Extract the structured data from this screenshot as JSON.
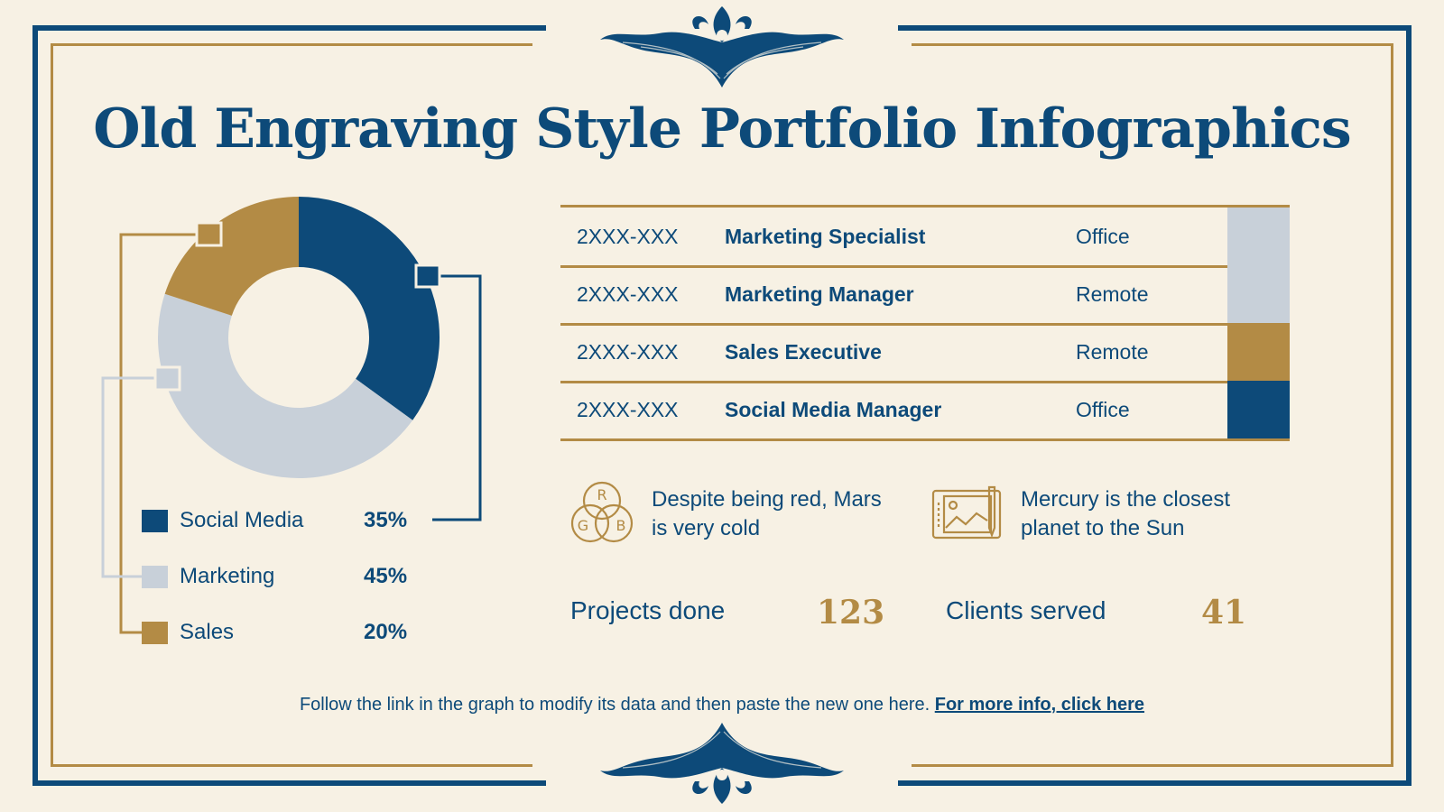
{
  "title": "Old Engraving Style Portfolio Infographics",
  "colors": {
    "navy": "#0d4a79",
    "gold": "#b38b45",
    "light": "#c8d0d9",
    "background": "#f7f1e4"
  },
  "chart_data": {
    "type": "pie",
    "donut": true,
    "categories": [
      "Social Media",
      "Marketing",
      "Sales"
    ],
    "values": [
      35,
      45,
      20
    ],
    "labels": [
      "35%",
      "45%",
      "20%"
    ],
    "colors": [
      "#0d4a79",
      "#c8d0d9",
      "#b38b45"
    ]
  },
  "table": {
    "rows": [
      {
        "date": "2XXX-XXX",
        "role": "Marketing Specialist",
        "location": "Office",
        "color": "#c8d0d9"
      },
      {
        "date": "2XXX-XXX",
        "role": "Marketing Manager",
        "location": "Remote",
        "color": "#c8d0d9"
      },
      {
        "date": "2XXX-XXX",
        "role": "Sales Executive",
        "location": "Remote",
        "color": "#b38b45"
      },
      {
        "date": "2XXX-XXX",
        "role": "Social Media Manager",
        "location": "Office",
        "color": "#0d4a79"
      }
    ]
  },
  "facts": [
    {
      "icon": "rgb-circles-icon",
      "icon_letters": [
        "R",
        "G",
        "B"
      ],
      "text_line1": "Despite being red, Mars",
      "text_line2": "is very cold"
    },
    {
      "icon": "drawing-tablet-icon",
      "text_line1": "Mercury is the closest",
      "text_line2": "planet to the Sun"
    }
  ],
  "stats": [
    {
      "label": "Projects done",
      "value": "123"
    },
    {
      "label": "Clients served",
      "value": "41"
    }
  ],
  "footer": {
    "text": "Follow the link in the graph to modify its data and then paste the new one here. ",
    "link": "For more info, click here"
  }
}
